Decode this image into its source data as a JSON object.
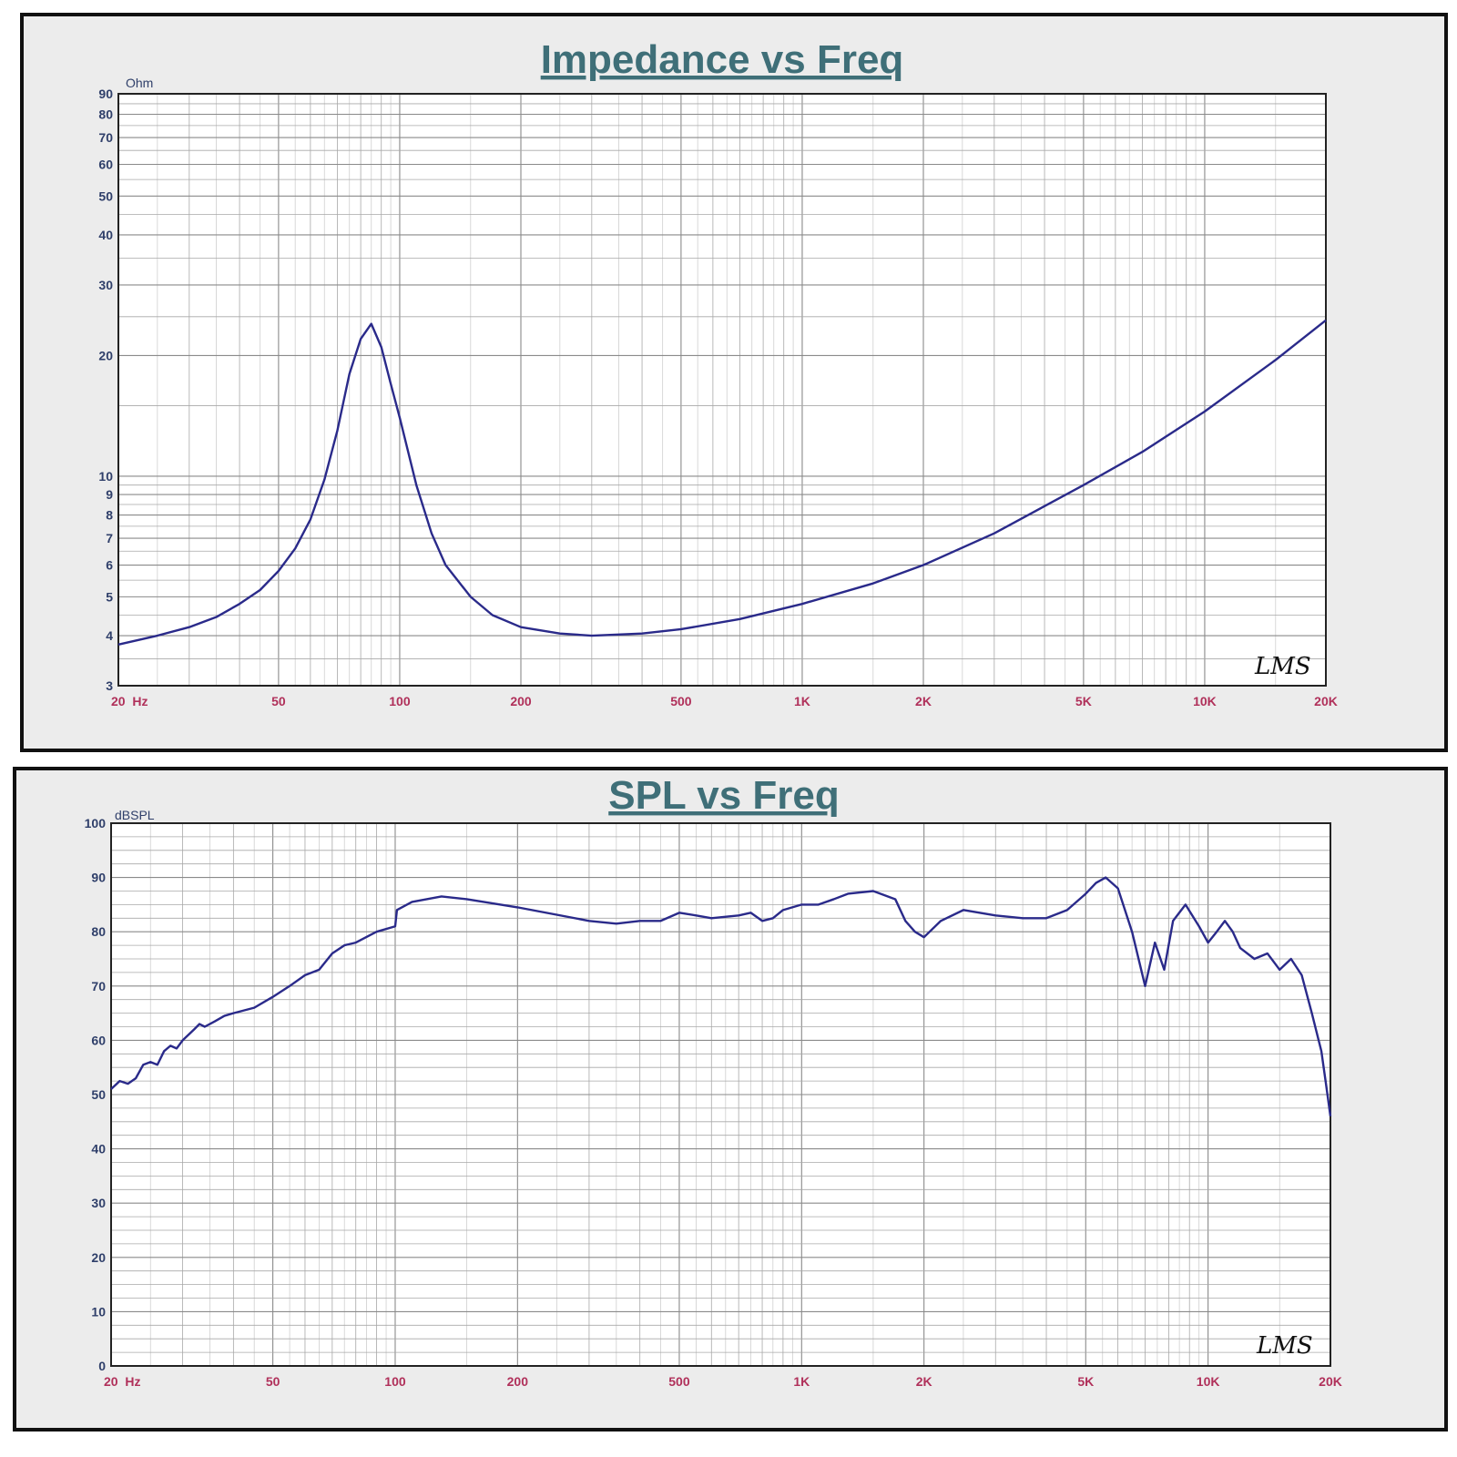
{
  "chart_data": [
    {
      "type": "line",
      "title": "Impedance vs Freq",
      "ylabel": "Ohm",
      "xlabel": "",
      "x_scale": "log",
      "y_scale": "log",
      "xlim": [
        20,
        20000
      ],
      "ylim": [
        3,
        90
      ],
      "grid": true,
      "x_tick_values": [
        20,
        50,
        100,
        200,
        500,
        1000,
        2000,
        5000,
        10000,
        20000
      ],
      "x_tick_labels": [
        "20  Hz",
        "50",
        "100",
        "200",
        "500",
        "1K",
        "2K",
        "5K",
        "10K",
        "20K"
      ],
      "y_tick_values": [
        3,
        4,
        5,
        6,
        7,
        8,
        9,
        10,
        20,
        30,
        40,
        50,
        60,
        70,
        80,
        90
      ],
      "y_tick_labels": [
        "3",
        "4",
        "5",
        "6",
        "7",
        "8",
        "9",
        "10",
        "20",
        "30",
        "40",
        "50",
        "60",
        "70",
        "80",
        "90"
      ],
      "watermark": "LMS",
      "series": [
        {
          "x": [
            20,
            25,
            30,
            35,
            40,
            45,
            50,
            55,
            60,
            65,
            70,
            75,
            80,
            85,
            90,
            95,
            100,
            110,
            120,
            130,
            150,
            170,
            200,
            250,
            300,
            400,
            500,
            700,
            1000,
            1500,
            2000,
            3000,
            5000,
            7000,
            10000,
            15000,
            20000
          ],
          "y": [
            3.8,
            4.0,
            4.2,
            4.45,
            4.8,
            5.2,
            5.8,
            6.6,
            7.8,
            9.8,
            13.0,
            18.0,
            22.0,
            24.0,
            21.0,
            17.0,
            14.0,
            9.5,
            7.2,
            6.0,
            5.0,
            4.5,
            4.2,
            4.05,
            4.0,
            4.05,
            4.15,
            4.4,
            4.8,
            5.4,
            6.0,
            7.2,
            9.5,
            11.5,
            14.5,
            19.5,
            24.5
          ]
        }
      ]
    },
    {
      "type": "line",
      "title": "SPL vs Freq",
      "ylabel": "dBSPL",
      "xlabel": "",
      "x_scale": "log",
      "xlim": [
        20,
        20000
      ],
      "ylim": [
        0,
        100
      ],
      "grid": true,
      "x_tick_values": [
        20,
        50,
        100,
        200,
        500,
        1000,
        2000,
        5000,
        10000,
        20000
      ],
      "x_tick_labels": [
        "20  Hz",
        "50",
        "100",
        "200",
        "500",
        "1K",
        "2K",
        "5K",
        "10K",
        "20K"
      ],
      "y_tick_values": [
        0,
        10,
        20,
        30,
        40,
        50,
        60,
        70,
        80,
        90,
        100
      ],
      "y_tick_labels": [
        "0",
        "10",
        "20",
        "30",
        "40",
        "50",
        "60",
        "70",
        "80",
        "90",
        "100"
      ],
      "watermark": "LMS",
      "series": [
        {
          "x": [
            20,
            21,
            22,
            23,
            24,
            25,
            26,
            27,
            28,
            29,
            30,
            32,
            33,
            34,
            36,
            38,
            40,
            45,
            50,
            55,
            60,
            65,
            70,
            75,
            80,
            90,
            100,
            101,
            110,
            130,
            150,
            200,
            300,
            350,
            400,
            450,
            500,
            550,
            600,
            700,
            750,
            800,
            850,
            900,
            1000,
            1100,
            1200,
            1300,
            1500,
            1700,
            1800,
            1900,
            2000,
            2200,
            2500,
            3000,
            3500,
            4000,
            4500,
            5000,
            5300,
            5600,
            6000,
            6500,
            7000,
            7400,
            7800,
            8200,
            8800,
            9500,
            10000,
            10500,
            11000,
            11500,
            12000,
            13000,
            14000,
            15000,
            16000,
            17000,
            18000,
            19000,
            19500,
            20000
          ],
          "y": [
            51,
            52.5,
            52,
            53,
            55.5,
            56,
            55.5,
            58,
            59,
            58.5,
            60,
            62,
            63,
            62.5,
            63.5,
            64.5,
            65,
            66,
            68,
            70,
            72,
            73,
            76,
            77.5,
            78,
            80,
            81,
            84,
            85.5,
            86.5,
            86,
            84.5,
            82,
            81.5,
            82,
            82,
            83.5,
            83,
            82.5,
            83,
            83.5,
            82,
            82.5,
            84,
            85,
            85,
            86,
            87,
            87.5,
            86,
            82,
            80,
            79,
            82,
            84,
            83,
            82.5,
            82.5,
            84,
            87,
            89,
            90,
            88,
            80,
            70,
            78,
            73,
            82,
            85,
            81,
            78,
            80,
            82,
            80,
            77,
            75,
            76,
            73,
            75,
            72,
            65,
            58,
            52,
            46
          ]
        }
      ]
    }
  ]
}
